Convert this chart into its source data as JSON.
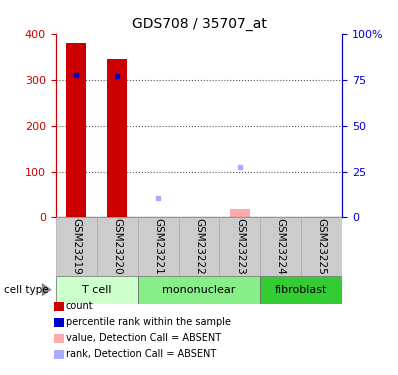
{
  "title": "GDS708 / 35707_at",
  "samples": [
    "GSM23219",
    "GSM23220",
    "GSM23221",
    "GSM23222",
    "GSM23223",
    "GSM23224",
    "GSM23225"
  ],
  "counts": [
    380,
    345,
    null,
    null,
    null,
    null,
    null
  ],
  "counts_absent": [
    null,
    null,
    null,
    null,
    18,
    null,
    null
  ],
  "ranks": [
    310,
    308,
    null,
    null,
    null,
    null,
    null
  ],
  "ranks_absent": [
    null,
    null,
    42,
    null,
    110,
    null,
    null
  ],
  "ylim_left": [
    0,
    400
  ],
  "ylim_right": [
    0,
    100
  ],
  "yticks_left": [
    0,
    100,
    200,
    300,
    400
  ],
  "yticks_right": [
    0,
    25,
    50,
    75,
    100
  ],
  "ytick_labels_right": [
    "0",
    "25",
    "50",
    "75",
    "100%"
  ],
  "bar_color": "#cc0000",
  "bar_absent_color": "#ffaaaa",
  "rank_color": "#0000cc",
  "rank_absent_color": "#aaaaff",
  "bar_width": 0.5,
  "tick_color_left": "#cc0000",
  "tick_color_right": "#0000cc",
  "legend_items": [
    {
      "color": "#cc0000",
      "label": "count"
    },
    {
      "color": "#0000cc",
      "label": "percentile rank within the sample"
    },
    {
      "color": "#ffaaaa",
      "label": "value, Detection Call = ABSENT"
    },
    {
      "color": "#aaaaff",
      "label": "rank, Detection Call = ABSENT"
    }
  ],
  "cell_type_label": "cell type",
  "t_cell_color": "#ccffcc",
  "mononuclear_color": "#88ee88",
  "fibroblast_color": "#33cc33",
  "sample_box_color": "#cccccc",
  "group_info": [
    {
      "label": "T cell",
      "start": 0,
      "end": 1
    },
    {
      "label": "mononuclear",
      "start": 2,
      "end": 4
    },
    {
      "label": "fibroblast",
      "start": 5,
      "end": 6
    }
  ],
  "group_colors": [
    "#ccffcc",
    "#88ee88",
    "#33cc33"
  ]
}
